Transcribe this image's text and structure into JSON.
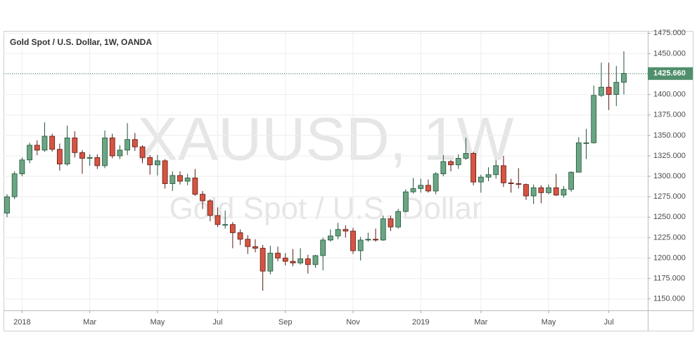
{
  "chart_data": {
    "type": "candlestick",
    "title": "Gold Spot / U.S. Dollar, 1W, OANDA",
    "watermark": "XAUUSD, 1W",
    "watermark_subtitle": "Gold Spot / U.S. Dollar",
    "categories": [
      null,
      null,
      "2018",
      null,
      null,
      null,
      null,
      null,
      null,
      null,
      null,
      "Mar",
      null,
      null,
      null,
      null,
      null,
      null,
      null,
      null,
      "May",
      null,
      null,
      null,
      null,
      null,
      null,
      null,
      "Jul",
      null,
      null,
      null,
      null,
      null,
      null,
      null,
      null,
      "Sep",
      null,
      null,
      null,
      null,
      null,
      null,
      null,
      null,
      "Nov",
      null,
      null,
      null,
      null,
      null,
      null,
      null,
      null,
      "2019",
      null,
      null,
      null,
      null,
      null,
      null,
      null,
      "Mar",
      null,
      null,
      null,
      null,
      null,
      null,
      null,
      null,
      "May",
      null,
      null,
      null,
      null,
      null,
      null,
      null,
      "Jul",
      null,
      null
    ],
    "open": [
      1255,
      1275,
      1303,
      1320,
      1338,
      1332,
      1349,
      1333,
      1315,
      1347,
      1329,
      1322,
      1323,
      1313,
      1347,
      1325,
      1332,
      1345,
      1336,
      1323,
      1314,
      1319,
      1291,
      1301,
      1294,
      1298,
      1278,
      1270,
      1252,
      1241,
      1241,
      1231,
      1223,
      1214,
      1212,
      1184,
      1206,
      1200,
      1196,
      1194,
      1199,
      1192,
      1203,
      1222,
      1227,
      1235,
      1233,
      1209,
      1222,
      1223,
      1222,
      1248,
      1238,
      1257,
      1281,
      1285,
      1289,
      1282,
      1303,
      1318,
      1314,
      1322,
      1328,
      1293,
      1299,
      1302,
      1313,
      1292,
      1291,
      1290,
      1276,
      1286,
      1280,
      1286,
      1277,
      1284,
      1305,
      1341,
      1341,
      1399,
      1409,
      1400,
      1415
    ],
    "high": [
      1278,
      1306,
      1323,
      1341,
      1344,
      1366,
      1352,
      1340,
      1362,
      1355,
      1332,
      1327,
      1327,
      1356,
      1352,
      1338,
      1365,
      1353,
      1338,
      1326,
      1326,
      1321,
      1306,
      1306,
      1303,
      1309,
      1282,
      1272,
      1262,
      1258,
      1244,
      1235,
      1228,
      1223,
      1216,
      1215,
      1214,
      1206,
      1211,
      1212,
      1204,
      1204,
      1225,
      1235,
      1243,
      1240,
      1237,
      1226,
      1231,
      1236,
      1252,
      1252,
      1260,
      1284,
      1298,
      1297,
      1296,
      1305,
      1326,
      1320,
      1327,
      1347,
      1330,
      1302,
      1311,
      1320,
      1325,
      1297,
      1310,
      1291,
      1290,
      1289,
      1290,
      1303,
      1288,
      1306,
      1348,
      1358,
      1411,
      1439,
      1439,
      1435,
      1453
    ],
    "low": [
      1250,
      1272,
      1300,
      1316,
      1326,
      1330,
      1330,
      1307,
      1313,
      1323,
      1303,
      1313,
      1309,
      1310,
      1322,
      1321,
      1326,
      1331,
      1316,
      1302,
      1301,
      1285,
      1282,
      1290,
      1289,
      1276,
      1260,
      1245,
      1238,
      1236,
      1212,
      1216,
      1205,
      1207,
      1160,
      1180,
      1196,
      1191,
      1190,
      1192,
      1181,
      1188,
      1185,
      1220,
      1223,
      1225,
      1205,
      1197,
      1220,
      1220,
      1221,
      1233,
      1236,
      1256,
      1279,
      1280,
      1280,
      1278,
      1300,
      1306,
      1309,
      1320,
      1289,
      1280,
      1294,
      1297,
      1287,
      1280,
      1285,
      1271,
      1266,
      1267,
      1278,
      1276,
      1274,
      1281,
      1305,
      1321,
      1340,
      1397,
      1381,
      1386,
      1400
    ],
    "close": [
      1275,
      1303,
      1320,
      1338,
      1332,
      1349,
      1333,
      1315,
      1347,
      1329,
      1322,
      1323,
      1313,
      1347,
      1325,
      1332,
      1345,
      1336,
      1323,
      1314,
      1319,
      1291,
      1301,
      1294,
      1298,
      1278,
      1270,
      1252,
      1241,
      1241,
      1231,
      1223,
      1214,
      1212,
      1184,
      1206,
      1200,
      1196,
      1194,
      1199,
      1192,
      1203,
      1222,
      1227,
      1235,
      1233,
      1209,
      1222,
      1223,
      1222,
      1248,
      1238,
      1257,
      1281,
      1285,
      1289,
      1282,
      1303,
      1318,
      1314,
      1322,
      1328,
      1293,
      1299,
      1302,
      1313,
      1292,
      1291,
      1290,
      1276,
      1286,
      1280,
      1286,
      1277,
      1284,
      1305,
      1341,
      1341,
      1399,
      1409,
      1400,
      1415,
      1426
    ],
    "up_color": "#6ba583",
    "down_color": "#d75442",
    "ylim": [
      1136,
      1477
    ],
    "yticks": [
      {
        "value": 1150,
        "label": "1150.000"
      },
      {
        "value": 1175,
        "label": "1175.000"
      },
      {
        "value": 1200,
        "label": "1200.000"
      },
      {
        "value": 1225,
        "label": "1225.000"
      },
      {
        "value": 1250,
        "label": "1250.000"
      },
      {
        "value": 1275,
        "label": "1275.000"
      },
      {
        "value": 1300,
        "label": "1300.000"
      },
      {
        "value": 1325,
        "label": "1325.000"
      },
      {
        "value": 1350,
        "label": "1350.000"
      },
      {
        "value": 1375,
        "label": "1375.000"
      },
      {
        "value": 1400,
        "label": "1400.000"
      },
      {
        "value": 1425,
        "label": "1425.000"
      },
      {
        "value": 1450,
        "label": "1450.000"
      },
      {
        "value": 1475,
        "label": "1475.000"
      }
    ],
    "last_price": {
      "value": 1425.66,
      "label": "1425.660"
    },
    "grid": true
  }
}
